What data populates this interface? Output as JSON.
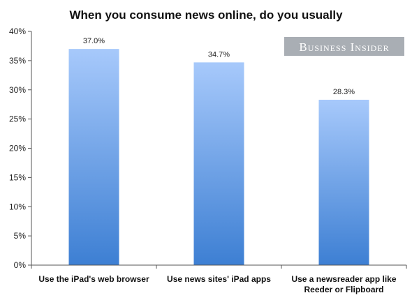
{
  "chart_data": {
    "type": "bar",
    "title": "When you consume news online, do you usually",
    "categories": [
      [
        "Use the iPad's web browser"
      ],
      [
        "Use news sites' iPad apps"
      ],
      [
        "Use a newsreader app like",
        "Reeder or Flipboard"
      ]
    ],
    "values": [
      37.0,
      34.7,
      28.3
    ],
    "data_labels": [
      "37.0%",
      "34.7%",
      "28.3%"
    ],
    "ylim": [
      0,
      40
    ],
    "yticks": [
      0,
      5,
      10,
      15,
      20,
      25,
      30,
      35,
      40
    ],
    "ytick_labels": [
      "0%",
      "5%",
      "10%",
      "15%",
      "20%",
      "25%",
      "30%",
      "35%",
      "40%"
    ],
    "grid": false,
    "legend": "none",
    "bar_color_top": "#a7c9fb",
    "bar_color_bottom": "#3d7fd3"
  },
  "watermark": {
    "text": "Business Insider",
    "background": "#a9aeb4"
  }
}
